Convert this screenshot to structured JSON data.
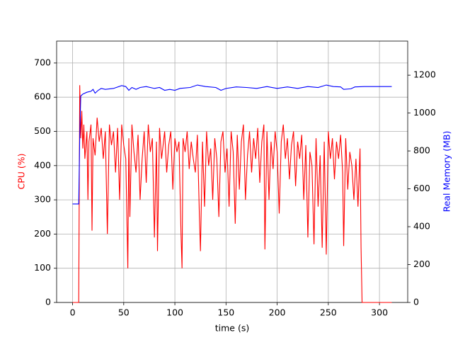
{
  "chart_data": {
    "type": "line",
    "xlabel": "time (s)",
    "ylabel": "CPU (%)",
    "y2label": "Real Memory (MB)",
    "xlim": [
      -15.6,
      327.6
    ],
    "xticks": [
      0,
      50,
      100,
      150,
      200,
      250,
      300
    ],
    "ylim": [
      0,
      764
    ],
    "yticks": [
      0,
      100,
      200,
      300,
      400,
      500,
      600,
      700
    ],
    "y2lim": [
      0,
      1380
    ],
    "y2ticks": [
      0,
      200,
      400,
      600,
      800,
      1000,
      1200
    ],
    "grid": true,
    "series": [
      {
        "name": "CPU (%)",
        "color": "#ff0000",
        "axis": "y",
        "x": [
          0,
          6,
          7,
          8,
          9,
          10,
          11,
          12,
          14,
          15,
          16,
          18,
          19,
          20,
          22,
          24,
          26,
          28,
          30,
          32,
          34,
          36,
          38,
          40,
          42,
          44,
          46,
          48,
          50,
          52,
          54,
          55,
          56,
          58,
          60,
          62,
          64,
          66,
          68,
          70,
          72,
          74,
          76,
          78,
          80,
          82,
          83,
          85,
          87,
          90,
          92,
          94,
          96,
          98,
          100,
          102,
          104,
          106,
          107,
          108,
          110,
          112,
          114,
          116,
          118,
          120,
          122,
          124,
          125,
          127,
          129,
          131,
          133,
          135,
          137,
          139,
          141,
          143,
          145,
          147,
          149,
          151,
          153,
          155,
          157,
          159,
          161,
          163,
          165,
          167,
          169,
          171,
          173,
          175,
          177,
          179,
          181,
          183,
          185,
          187,
          188,
          190,
          192,
          194,
          196,
          198,
          200,
          202,
          204,
          206,
          208,
          210,
          212,
          214,
          216,
          218,
          220,
          222,
          224,
          226,
          228,
          230,
          232,
          234,
          236,
          238,
          240,
          242,
          244,
          246,
          248,
          250,
          252,
          254,
          256,
          258,
          260,
          262,
          264,
          265,
          267,
          269,
          271,
          273,
          275,
          277,
          279,
          281,
          282,
          283,
          312
        ],
        "values": [
          0,
          0,
          635,
          480,
          560,
          450,
          520,
          420,
          500,
          300,
          470,
          520,
          210,
          480,
          430,
          540,
          470,
          510,
          420,
          500,
          200,
          520,
          460,
          500,
          380,
          510,
          300,
          520,
          460,
          420,
          100,
          480,
          250,
          520,
          440,
          380,
          490,
          300,
          420,
          500,
          350,
          520,
          440,
          480,
          190,
          470,
          150,
          510,
          420,
          500,
          380,
          460,
          500,
          330,
          480,
          440,
          470,
          200,
          100,
          480,
          440,
          500,
          390,
          470,
          420,
          380,
          490,
          250,
          150,
          470,
          280,
          500,
          400,
          450,
          300,
          480,
          420,
          250,
          470,
          500,
          380,
          450,
          280,
          500,
          440,
          230,
          490,
          330,
          470,
          520,
          300,
          430,
          500,
          380,
          480,
          420,
          510,
          350,
          470,
          520,
          155,
          500,
          300,
          470,
          390,
          500,
          440,
          260,
          470,
          520,
          420,
          480,
          360,
          460,
          500,
          340,
          470,
          420,
          490,
          300,
          460,
          190,
          440,
          400,
          170,
          480,
          280,
          430,
          160,
          470,
          140,
          500,
          420,
          480,
          360,
          470,
          420,
          490,
          380,
          165,
          480,
          330,
          440,
          400,
          300,
          420,
          280,
          450,
          160,
          0,
          0
        ]
      },
      {
        "name": "Real Memory (MB)",
        "color": "#0000ff",
        "axis": "y2",
        "x": [
          0,
          6,
          7,
          8,
          10,
          14,
          18,
          20,
          22,
          25,
          28,
          32,
          40,
          48,
          52,
          55,
          58,
          62,
          66,
          72,
          80,
          85,
          90,
          95,
          100,
          105,
          115,
          122,
          130,
          140,
          145,
          150,
          160,
          170,
          180,
          190,
          200,
          210,
          220,
          230,
          240,
          248,
          255,
          262,
          265,
          272,
          276,
          285,
          312
        ],
        "values": [
          520,
          520,
          880,
          1090,
          1100,
          1110,
          1115,
          1125,
          1105,
          1120,
          1130,
          1125,
          1130,
          1145,
          1140,
          1120,
          1135,
          1125,
          1135,
          1140,
          1130,
          1135,
          1120,
          1125,
          1120,
          1130,
          1135,
          1148,
          1140,
          1135,
          1120,
          1130,
          1138,
          1135,
          1130,
          1140,
          1130,
          1138,
          1130,
          1140,
          1135,
          1148,
          1140,
          1138,
          1125,
          1128,
          1138,
          1140,
          1140
        ]
      }
    ]
  }
}
